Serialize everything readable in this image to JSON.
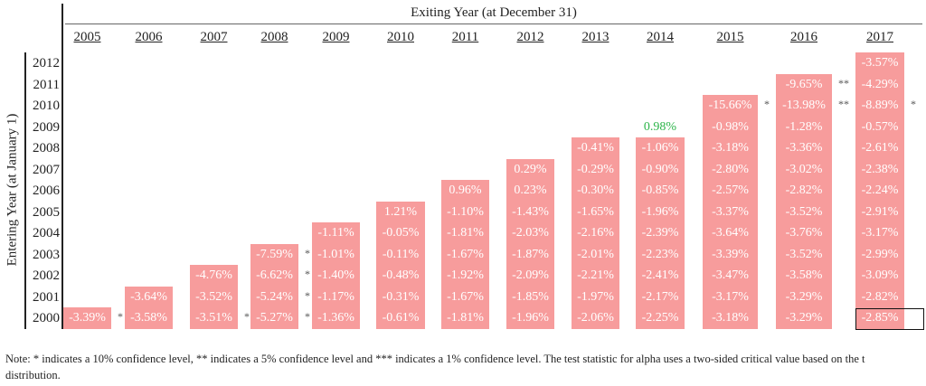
{
  "chart_data": {
    "type": "heatmap",
    "title": "Exiting Year (at December 31)",
    "xlabel": "Exiting Year (at December 31)",
    "ylabel": "Entering Year (at January 1)",
    "x_categories": [
      "2005",
      "2006",
      "2007",
      "2008",
      "2009",
      "2010",
      "2011",
      "2012",
      "2013",
      "2014",
      "2015",
      "2016",
      "2017"
    ],
    "y_categories": [
      "2000",
      "2001",
      "2002",
      "2003",
      "2004",
      "2005",
      "2006",
      "2007",
      "2008",
      "2009",
      "2010",
      "2011",
      "2012"
    ],
    "colors": {
      "cell": "#f79c9c",
      "text": "#ffffff",
      "positive_outside": "#2db54a"
    },
    "columns": [
      {
        "exit": "2005",
        "values": [
          "-3.39%"
        ],
        "stars": [
          "*"
        ]
      },
      {
        "exit": "2006",
        "values": [
          "-3.58%",
          "-3.64%"
        ],
        "stars": [
          "",
          ""
        ]
      },
      {
        "exit": "2007",
        "values": [
          "-3.51%",
          "-3.52%",
          "-4.76%"
        ],
        "stars": [
          "*",
          "",
          ""
        ]
      },
      {
        "exit": "2008",
        "values": [
          "-5.27%",
          "-5.24%",
          "-6.62%",
          "-7.59%"
        ],
        "stars": [
          "*",
          "*",
          "*",
          "*"
        ]
      },
      {
        "exit": "2009",
        "values": [
          "-1.36%",
          "-1.17%",
          "-1.40%",
          "-1.01%",
          "-1.11%"
        ],
        "stars": [
          "",
          "",
          "",
          "",
          ""
        ]
      },
      {
        "exit": "2010",
        "values": [
          "-0.61%",
          "-0.31%",
          "-0.48%",
          "-0.11%",
          "-0.05%",
          "1.21%"
        ],
        "stars": [
          "",
          "",
          "",
          "",
          "",
          ""
        ]
      },
      {
        "exit": "2011",
        "values": [
          "-1.81%",
          "-1.67%",
          "-1.92%",
          "-1.67%",
          "-1.81%",
          "-1.10%",
          "0.96%"
        ],
        "stars": [
          "",
          "",
          "",
          "",
          "",
          "",
          ""
        ]
      },
      {
        "exit": "2012",
        "values": [
          "-1.96%",
          "-1.85%",
          "-2.09%",
          "-1.87%",
          "-2.03%",
          "-1.43%",
          "0.23%",
          "0.29%"
        ],
        "stars": [
          "",
          "",
          "",
          "",
          "",
          "",
          "",
          ""
        ]
      },
      {
        "exit": "2013",
        "values": [
          "-2.06%",
          "-1.97%",
          "-2.21%",
          "-2.01%",
          "-2.16%",
          "-1.65%",
          "-0.30%",
          "-0.29%",
          "-0.41%"
        ],
        "stars": [
          "",
          "",
          "",
          "",
          "",
          "",
          "",
          "",
          ""
        ]
      },
      {
        "exit": "2014",
        "values": [
          "-2.25%",
          "-2.17%",
          "-2.41%",
          "-2.23%",
          "-2.39%",
          "-1.96%",
          "-0.85%",
          "-0.90%",
          "-1.06%",
          "0.98%"
        ],
        "stars": [
          "",
          "",
          "",
          "",
          "",
          "",
          "",
          "",
          "",
          ""
        ],
        "unshaded": [
          9
        ]
      },
      {
        "exit": "2015",
        "values": [
          "-3.18%",
          "-3.17%",
          "-3.47%",
          "-3.39%",
          "-3.64%",
          "-3.37%",
          "-2.57%",
          "-2.80%",
          "-3.18%",
          "-0.98%",
          "-15.66%"
        ],
        "stars": [
          "",
          "",
          "",
          "",
          "",
          "",
          "",
          "",
          "",
          "",
          "*"
        ]
      },
      {
        "exit": "2016",
        "values": [
          "-3.29%",
          "-3.29%",
          "-3.58%",
          "-3.52%",
          "-3.76%",
          "-3.52%",
          "-2.82%",
          "-3.02%",
          "-3.36%",
          "-1.28%",
          "-13.98%",
          "-9.65%"
        ],
        "stars": [
          "",
          "",
          "",
          "",
          "",
          "",
          "",
          "",
          "",
          "",
          "**",
          "**"
        ]
      },
      {
        "exit": "2017",
        "values": [
          "-2.85%",
          "-2.82%",
          "-3.09%",
          "-2.99%",
          "-3.17%",
          "-2.91%",
          "-2.24%",
          "-2.38%",
          "-2.61%",
          "-0.57%",
          "-8.89%",
          "-4.29%",
          "-3.57%"
        ],
        "stars": [
          "",
          "",
          "",
          "",
          "",
          "",
          "",
          "",
          "",
          "",
          "*",
          "",
          ""
        ],
        "highlighted": [
          0
        ]
      }
    ]
  },
  "note": "Note: * indicates a 10% confidence level, ** indicates a 5% confidence level and *** indicates a 1% confidence level. The test statistic for alpha uses a two-sided critical value based on the t distribution."
}
